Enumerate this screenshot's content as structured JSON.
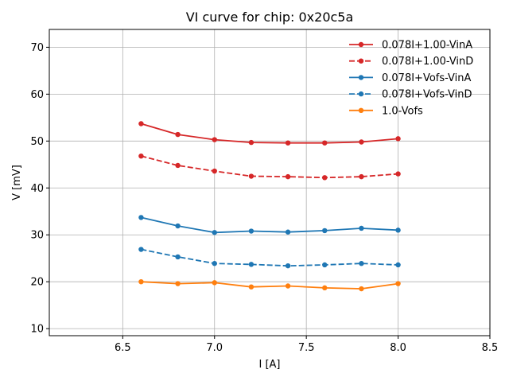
{
  "chart_data": {
    "type": "line",
    "title": "VI curve for chip: 0x20c5a",
    "xlabel": "I [A]",
    "ylabel": "V [mV]",
    "xlim": [
      6.1,
      8.5
    ],
    "ylim": [
      8.5,
      73.8
    ],
    "xticks": [
      6.5,
      7.0,
      7.5,
      8.0,
      8.5
    ],
    "xtick_labels": [
      "6.5",
      "7.0",
      "7.5",
      "8.0",
      "8.5"
    ],
    "yticks": [
      10,
      20,
      30,
      40,
      50,
      60,
      70
    ],
    "ytick_labels": [
      "10",
      "20",
      "30",
      "40",
      "50",
      "60",
      "70"
    ],
    "grid": true,
    "legend_position": "top-right",
    "x": [
      6.6,
      6.8,
      7.0,
      7.2,
      7.4,
      7.6,
      7.8,
      8.0
    ],
    "series": [
      {
        "name": "0.078I+1.00-VinA",
        "color": "#d62728",
        "dashed": false,
        "values": [
          53.7,
          51.4,
          50.3,
          49.7,
          49.6,
          49.6,
          49.8,
          50.5
        ]
      },
      {
        "name": "0.078I+1.00-VinD",
        "color": "#d62728",
        "dashed": true,
        "values": [
          46.8,
          44.8,
          43.6,
          42.5,
          42.4,
          42.2,
          42.4,
          43.0
        ]
      },
      {
        "name": "0.078I+Vofs-VinA",
        "color": "#1f77b4",
        "dashed": false,
        "values": [
          33.7,
          31.9,
          30.5,
          30.8,
          30.6,
          30.9,
          31.4,
          31.0
        ]
      },
      {
        "name": "0.078I+Vofs-VinD",
        "color": "#1f77b4",
        "dashed": true,
        "values": [
          26.9,
          25.3,
          23.9,
          23.7,
          23.4,
          23.6,
          23.9,
          23.6
        ]
      },
      {
        "name": "1.0-Vofs",
        "color": "#ff7f0e",
        "dashed": false,
        "values": [
          20.0,
          19.6,
          19.8,
          18.9,
          19.1,
          18.7,
          18.5,
          19.6
        ]
      }
    ]
  }
}
